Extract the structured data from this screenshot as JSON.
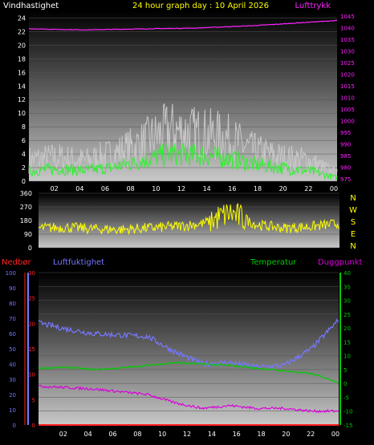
{
  "header": {
    "wind_title": "Vindhastighet",
    "center_title": "24 hour graph day : 10 April 2026",
    "pressure_title": "Lufttrykk"
  },
  "colors": {
    "title_yellow": "#ffff00",
    "wind_gust": "#c8c8c8",
    "wind_avg": "#33ee33",
    "pressure": "#ff22ff",
    "direction": "#ffff00",
    "humidity": "#7777ff",
    "temperature": "#00cc00",
    "dewpoint": "#dd00dd",
    "rain": "#ff2222",
    "tick_text": "#ffffff"
  },
  "x_ticks": [
    "02",
    "04",
    "06",
    "08",
    "10",
    "12",
    "14",
    "16",
    "18",
    "20",
    "22",
    "00"
  ],
  "compass": [
    "N",
    "W",
    "S",
    "E",
    "N"
  ],
  "bottom_headers": {
    "rain": "Nedbør",
    "humidity": "Luftfuktighet",
    "temperature": "Temperatur",
    "dewpoint": "Duggpunkt"
  },
  "chart_data": [
    {
      "type": "line",
      "title": "24 hour graph day : 10 April 2026",
      "ylabel": "Vindhastighet",
      "ylim": [
        0,
        25
      ],
      "y_ticks": [
        "0",
        "2",
        "4",
        "6",
        "8",
        "10",
        "12",
        "14",
        "16",
        "18",
        "20",
        "22",
        "24"
      ],
      "y2label": "Lufttrykk",
      "y2lim": [
        974,
        1047
      ],
      "y2_ticks": [
        "975",
        "980",
        "985",
        "990",
        "995",
        "1000",
        "1005",
        "1010",
        "1015",
        "1020",
        "1025",
        "1030",
        "1035",
        "1040",
        "1045"
      ],
      "x": [
        "02",
        "04",
        "06",
        "08",
        "10",
        "12",
        "14",
        "16",
        "18",
        "20",
        "22",
        "00"
      ],
      "series": [
        {
          "name": "Vindhastighet (gust)",
          "axis": "left",
          "values": [
            3.2,
            3.5,
            3.0,
            4.0,
            5.5,
            7.5,
            7.0,
            6.5,
            4.5,
            3.5,
            3.0,
            1.0
          ]
        },
        {
          "name": "Vindhastighet (avg)",
          "axis": "left",
          "values": [
            1.5,
            1.8,
            1.6,
            2.0,
            3.0,
            4.0,
            3.8,
            3.5,
            2.5,
            2.0,
            1.5,
            0.5
          ]
        },
        {
          "name": "Lufttrykk",
          "axis": "right",
          "values": [
            1039.5,
            1039.2,
            1039.0,
            1039.2,
            1039.4,
            1039.6,
            1039.8,
            1040.3,
            1040.8,
            1041.5,
            1042.3,
            1043.0
          ]
        }
      ]
    },
    {
      "type": "line",
      "ylim": [
        0,
        360
      ],
      "y_ticks": [
        "0",
        "90",
        "180",
        "270",
        "360"
      ],
      "x": [
        "02",
        "04",
        "06",
        "08",
        "10",
        "12",
        "14",
        "16",
        "18",
        "20",
        "22",
        "00"
      ],
      "series": [
        {
          "name": "Vindretning",
          "values": [
            130,
            135,
            125,
            120,
            130,
            140,
            160,
            230,
            150,
            130,
            140,
            160
          ]
        }
      ]
    },
    {
      "type": "line",
      "x": [
        "02",
        "04",
        "06",
        "08",
        "10",
        "12",
        "14",
        "16",
        "18",
        "20",
        "22",
        "00"
      ],
      "axes": {
        "humidity": {
          "ylim": [
            0,
            100
          ],
          "ticks": [
            "0",
            "10",
            "20",
            "30",
            "40",
            "50",
            "60",
            "70",
            "80",
            "90",
            "100"
          ]
        },
        "rain": {
          "ylim": [
            0,
            30
          ],
          "ticks": [
            "0",
            "5",
            "10",
            "15",
            "20",
            "25",
            "30"
          ]
        },
        "temperature": {
          "ylim": [
            -15,
            40
          ],
          "ticks": [
            "-15",
            "-10",
            "-5",
            "0",
            "5",
            "10",
            "15",
            "20",
            "25",
            "30",
            "35",
            "40"
          ]
        }
      },
      "series": [
        {
          "name": "Luftfuktighet",
          "axis": "humidity",
          "values": [
            67,
            63,
            60,
            59,
            58,
            48,
            40,
            41,
            38,
            39,
            50,
            69
          ]
        },
        {
          "name": "Temperatur",
          "axis": "temperature",
          "values": [
            5.5,
            5.8,
            5.0,
            5.5,
            6.5,
            7.5,
            7.0,
            6.5,
            5.5,
            4.5,
            3.5,
            0.5
          ]
        },
        {
          "name": "Duggpunkt",
          "axis": "temperature",
          "values": [
            -1,
            -1.5,
            -2,
            -3,
            -4,
            -7,
            -9,
            -8,
            -9,
            -9,
            -10,
            -10
          ]
        },
        {
          "name": "Nedbør",
          "axis": "rain",
          "values": [
            0,
            0,
            0,
            0,
            0,
            0,
            0,
            0,
            0,
            0,
            0,
            0
          ]
        }
      ]
    }
  ]
}
